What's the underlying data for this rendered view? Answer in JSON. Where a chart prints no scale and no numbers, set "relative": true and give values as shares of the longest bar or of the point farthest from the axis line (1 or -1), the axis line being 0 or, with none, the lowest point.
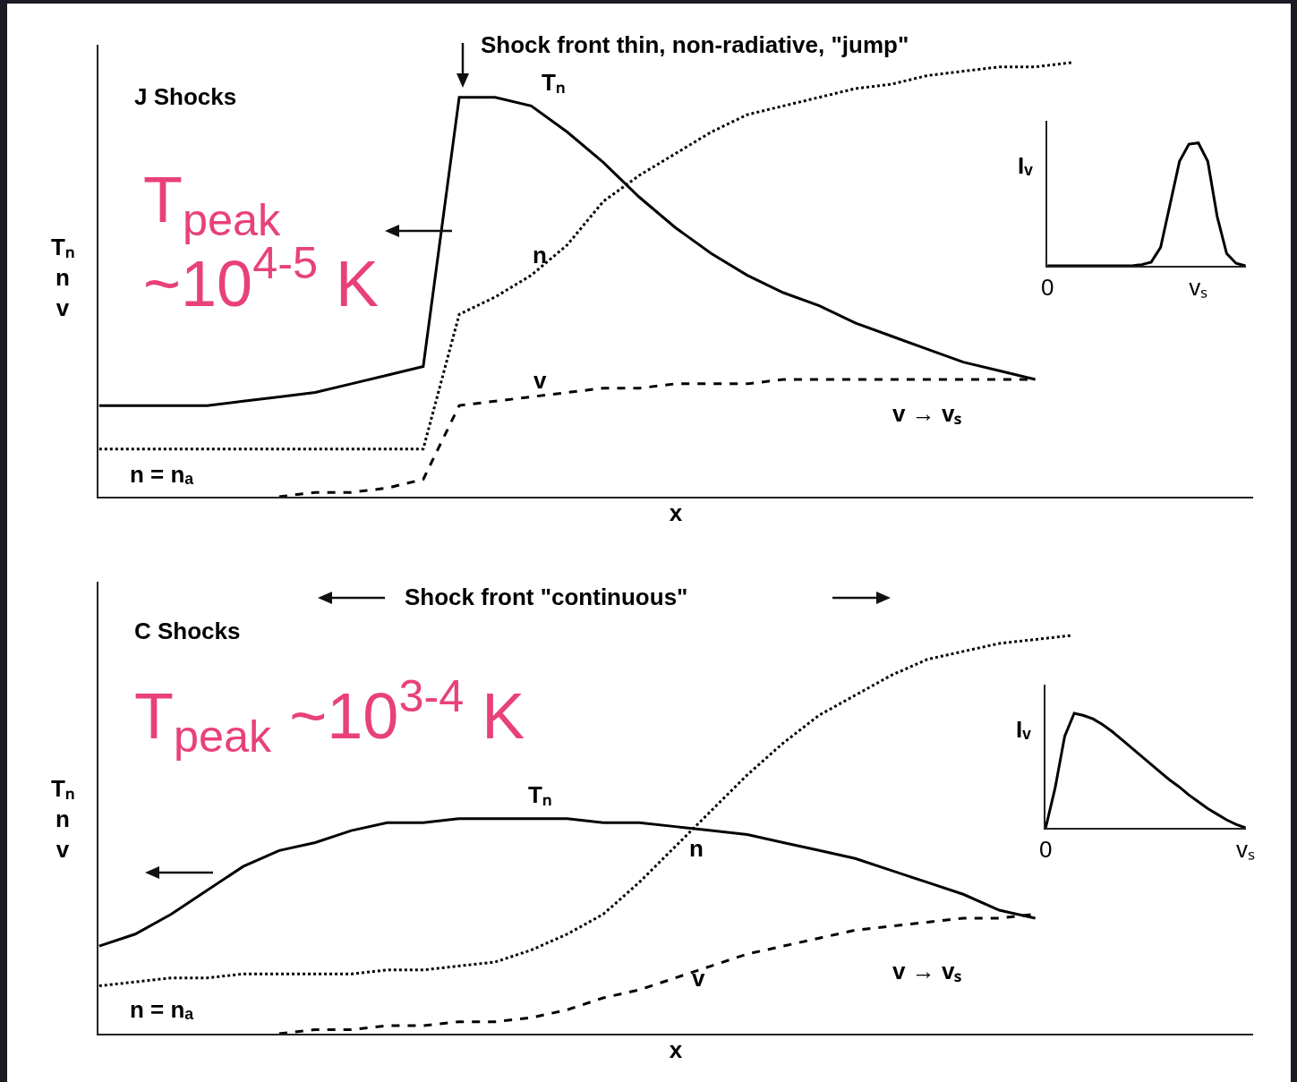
{
  "chart_data": [
    {
      "type": "line",
      "title": "J Shocks",
      "xlabel": "x",
      "ylabel": "Tₙ\nn\nv",
      "relative": true,
      "tick_labels": false,
      "annotations": [
        "Shock front thin, non-radiative, \"jump\"",
        "T$_{peak}$\n~10$^{4-5}$ K",
        "v → vₛ",
        "n = nₐ"
      ],
      "categories": [
        null,
        null,
        null,
        null,
        null,
        null,
        null,
        null,
        null,
        null,
        null,
        null,
        null,
        null,
        null,
        null,
        null,
        null,
        null,
        null,
        null,
        null,
        null,
        null,
        null,
        null,
        null,
        null,
        null,
        null,
        null,
        null,
        null
      ],
      "series": [
        {
          "name": "Tₙ",
          "color": "#000000",
          "line_style": "solid",
          "values": [
            0.21,
            0.21,
            0.21,
            0.21,
            0.22,
            0.23,
            0.24,
            0.26,
            0.28,
            0.3,
            0.92,
            0.92,
            0.9,
            0.84,
            0.77,
            0.69,
            0.62,
            0.56,
            0.51,
            0.47,
            0.44,
            0.4,
            0.37,
            0.34,
            0.31,
            0.29,
            0.27,
            null,
            null,
            null,
            null,
            null,
            null
          ]
        },
        {
          "name": "n",
          "color": "#000000",
          "line_style": "dotted",
          "values": [
            0.11,
            0.11,
            0.11,
            0.11,
            0.11,
            0.11,
            0.11,
            0.11,
            0.11,
            0.11,
            0.42,
            0.46,
            0.51,
            0.58,
            0.68,
            0.74,
            0.79,
            0.84,
            0.88,
            0.9,
            0.92,
            0.94,
            0.95,
            0.97,
            0.98,
            0.99,
            0.99,
            1,
            null,
            null,
            null,
            null,
            null
          ]
        },
        {
          "name": "v",
          "color": "#000000",
          "line_style": "dashed",
          "values": [
            null,
            null,
            null,
            null,
            null,
            0.0,
            0.01,
            0.01,
            0.02,
            0.04,
            0.21,
            0.22,
            0.23,
            0.24,
            0.25,
            0.25,
            0.26,
            0.26,
            0.26,
            0.27,
            0.27,
            0.27,
            0.27,
            0.27,
            0.27,
            0.27,
            0.27,
            null,
            null,
            null,
            null,
            null,
            null
          ]
        }
      ]
    },
    {
      "type": "line",
      "ylabel": "Iᵥ",
      "relative": true,
      "tick_labels": "x",
      "categories": [
        "0",
        null,
        null,
        null,
        null,
        null,
        null,
        null,
        null,
        null,
        null,
        null,
        null,
        null,
        null,
        null,
        "vₛ",
        null,
        null,
        null,
        null,
        null
      ],
      "series": [
        {
          "color": "#000000",
          "line_style": "solid",
          "values": [
            0,
            0,
            0,
            0,
            0,
            0,
            0,
            0,
            0,
            0,
            0.01,
            0.03,
            0.15,
            0.5,
            0.85,
            0.99,
            1,
            0.85,
            0.4,
            0.1,
            0.02,
            0
          ]
        }
      ]
    },
    {
      "type": "line",
      "title": "C Shocks",
      "xlabel": "x",
      "ylabel": "Tₙ\nn\nv",
      "relative": true,
      "tick_labels": false,
      "annotations": [
        "Shock front \"continuous\"",
        "T$_{peak}$ ~10$^{3-4}$ K",
        "v → vₛ",
        "n = nₐ"
      ],
      "categories": [
        null,
        null,
        null,
        null,
        null,
        null,
        null,
        null,
        null,
        null,
        null,
        null,
        null,
        null,
        null,
        null,
        null,
        null,
        null,
        null,
        null,
        null,
        null,
        null,
        null,
        null,
        null,
        null,
        null,
        null,
        null,
        null,
        null
      ],
      "series": [
        {
          "name": "Tₙ",
          "color": "#000000",
          "line_style": "solid",
          "values": [
            0.22,
            0.25,
            0.3,
            0.36,
            0.42,
            0.46,
            0.48,
            0.51,
            0.53,
            0.53,
            0.54,
            0.54,
            0.54,
            0.54,
            0.53,
            0.53,
            0.52,
            0.51,
            0.5,
            0.48,
            0.46,
            0.44,
            0.41,
            0.38,
            0.35,
            0.31,
            0.29,
            null,
            null,
            null,
            null,
            null,
            null
          ]
        },
        {
          "name": "n",
          "color": "#000000",
          "line_style": "dotted",
          "values": [
            0.12,
            0.13,
            0.14,
            0.14,
            0.15,
            0.15,
            0.15,
            0.15,
            0.16,
            0.16,
            0.17,
            0.18,
            0.21,
            0.25,
            0.3,
            0.38,
            0.47,
            0.56,
            0.65,
            0.73,
            0.8,
            0.85,
            0.9,
            0.94,
            0.96,
            0.98,
            0.99,
            1,
            null,
            null,
            null,
            null,
            null
          ]
        },
        {
          "name": "v",
          "color": "#000000",
          "line_style": "dashed",
          "values": [
            null,
            null,
            null,
            null,
            null,
            0.0,
            0.01,
            0.01,
            0.02,
            0.02,
            0.03,
            0.03,
            0.04,
            0.06,
            0.09,
            0.11,
            0.14,
            0.17,
            0.2,
            0.22,
            0.24,
            0.26,
            0.27,
            0.28,
            0.29,
            0.29,
            0.3,
            null,
            null,
            null,
            null,
            null,
            null
          ]
        }
      ]
    },
    {
      "type": "line",
      "ylabel": "Iᵥ",
      "relative": true,
      "tick_labels": "x",
      "categories": [
        "0",
        null,
        null,
        null,
        null,
        null,
        null,
        null,
        null,
        null,
        null,
        null,
        null,
        null,
        null,
        null,
        null,
        null,
        null,
        null,
        null,
        "vₛ"
      ],
      "series": [
        {
          "color": "#000000",
          "line_style": "solid",
          "values": [
            0,
            0.35,
            0.8,
            1,
            0.98,
            0.95,
            0.9,
            0.84,
            0.77,
            0.7,
            0.63,
            0.56,
            0.49,
            0.42,
            0.36,
            0.29,
            0.23,
            0.17,
            0.12,
            0.07,
            0.03,
            0
          ]
        }
      ]
    }
  ]
}
